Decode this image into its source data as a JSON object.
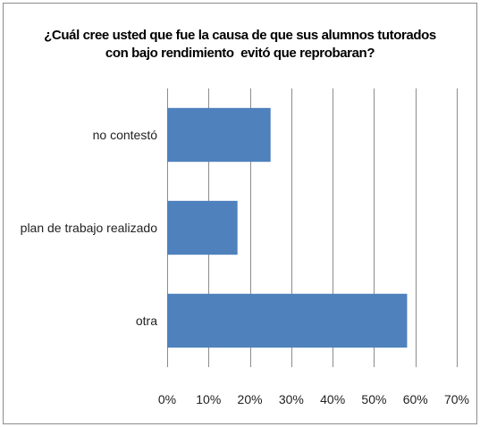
{
  "chart_data": {
    "type": "bar",
    "orientation": "horizontal",
    "title_lines": [
      "¿Cuál cree usted que fue la causa de que sus alumnos tutorados",
      "con bajo rendimiento  evitó que reprobaran?"
    ],
    "categories": [
      "no contestó",
      "plan de trabajo realizado",
      "otra"
    ],
    "values": [
      25,
      17,
      58
    ],
    "xticks": [
      "0%",
      "10%",
      "20%",
      "30%",
      "40%",
      "50%",
      "60%",
      "70%"
    ],
    "xlim": [
      0,
      70
    ],
    "grid": true,
    "bar_color": "#4f81bd",
    "grid_color": "#8c8c8c"
  }
}
